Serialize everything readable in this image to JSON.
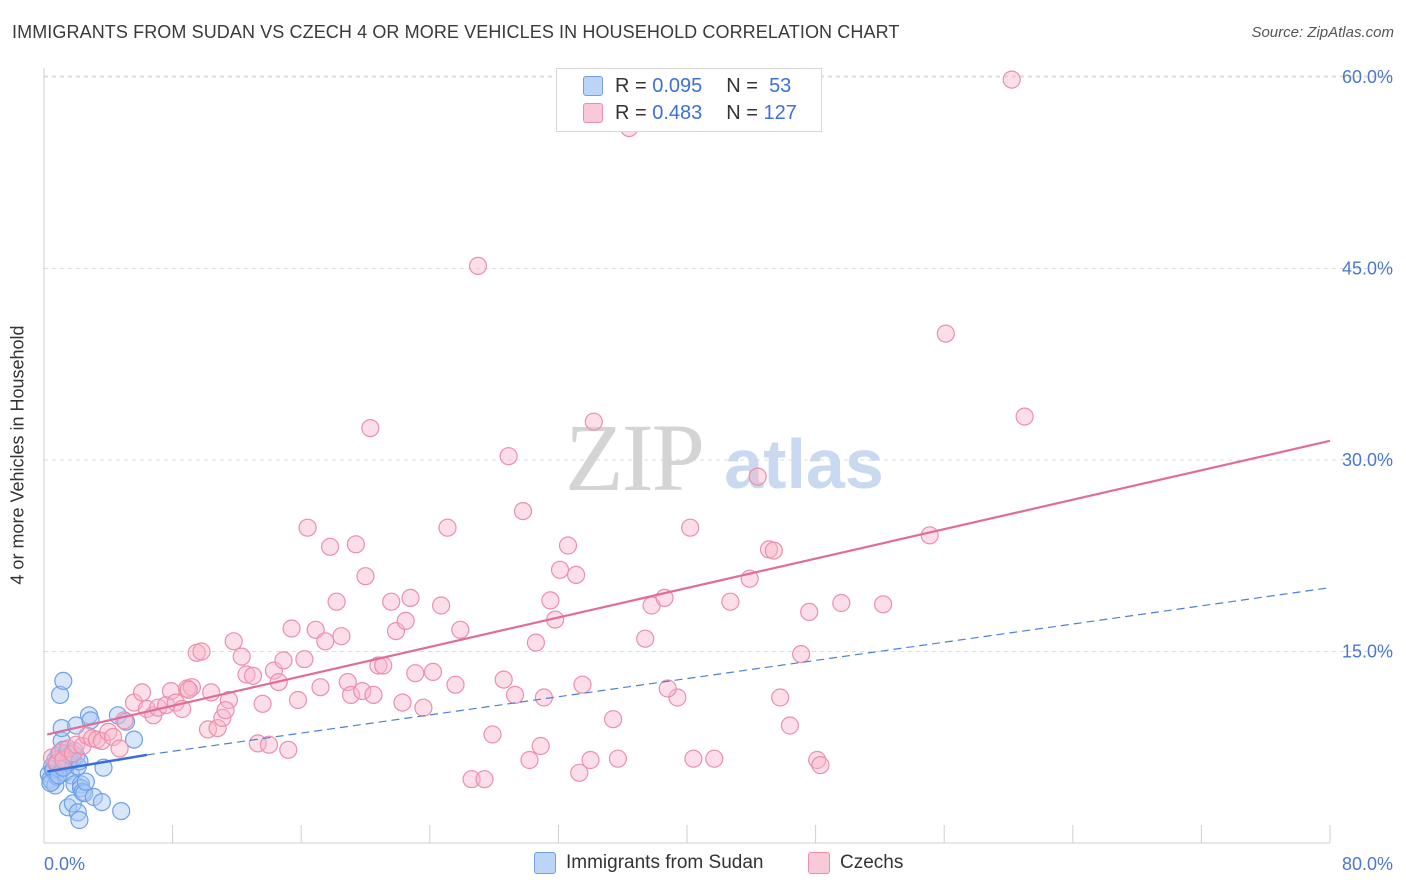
{
  "title": "IMMIGRANTS FROM SUDAN VS CZECH 4 OR MORE VEHICLES IN HOUSEHOLD CORRELATION CHART",
  "source": "Source: ZipAtlas.com",
  "watermark": {
    "zip": "ZIP",
    "atlas": "atlas"
  },
  "legend_top": [
    {
      "swatch_color": "#a9c8f3",
      "r_label": "R =",
      "r_value": "0.095",
      "n_label": "N =",
      "n_value": "53"
    },
    {
      "swatch_color": "#f6b6c9",
      "r_label": "R =",
      "r_value": "0.483",
      "n_label": "N =",
      "n_value": "127"
    }
  ],
  "legend_bottom": [
    {
      "label": "Immigrants from Sudan",
      "color": "#a9c8f3"
    },
    {
      "label": "Czechs",
      "color": "#f6b6c9"
    }
  ],
  "chart_data": {
    "type": "scatter",
    "title": "IMMIGRANTS FROM SUDAN VS CZECH 4 OR MORE VEHICLES IN HOUSEHOLD CORRELATION CHART",
    "xlabel": "",
    "ylabel": "4 or more Vehicles in Household",
    "xlim": [
      0,
      80
    ],
    "ylim": [
      0,
      63
    ],
    "x_tick_labels": [
      {
        "value": 0,
        "label": "0.0%"
      },
      {
        "value": 80,
        "label": "80.0%"
      }
    ],
    "y_tick_labels": [
      {
        "value": 15,
        "label": "15.0%"
      },
      {
        "value": 30,
        "label": "30.0%"
      },
      {
        "value": 45,
        "label": "45.0%"
      },
      {
        "value": 60,
        "label": "60.0%"
      }
    ],
    "grid": true,
    "legend_position": "top-center",
    "series": [
      {
        "name": "Immigrants from Sudan",
        "color": "#6fa0e8",
        "fill": "#a9c8f3",
        "trend": {
          "x0": 0.2,
          "y0": 5.6,
          "x1": 6.4,
          "y1": 6.9,
          "style": "solid",
          "color": "#3b6fd6"
        },
        "trend_extended": {
          "x0": 6.4,
          "y0": 6.9,
          "x1": 80,
          "y1": 20.0,
          "style": "dashed",
          "color": "#4d7fdc"
        },
        "points": [
          [
            0.3,
            5.4
          ],
          [
            0.4,
            5.0
          ],
          [
            0.5,
            4.8
          ],
          [
            0.5,
            6.0
          ],
          [
            0.6,
            5.6
          ],
          [
            0.7,
            4.5
          ],
          [
            0.7,
            6.5
          ],
          [
            0.8,
            5.2
          ],
          [
            0.9,
            6.9
          ],
          [
            1.0,
            5.8
          ],
          [
            1.0,
            11.6
          ],
          [
            1.1,
            8.0
          ],
          [
            1.1,
            9.0
          ],
          [
            1.2,
            12.7
          ],
          [
            1.2,
            7.3
          ],
          [
            1.3,
            5.5
          ],
          [
            1.4,
            6.1
          ],
          [
            1.4,
            7.0
          ],
          [
            1.5,
            2.8
          ],
          [
            1.6,
            6.4
          ],
          [
            1.7,
            5.3
          ],
          [
            1.8,
            3.1
          ],
          [
            1.8,
            6.6
          ],
          [
            1.9,
            7.2
          ],
          [
            1.9,
            4.6
          ],
          [
            2.0,
            9.2
          ],
          [
            2.0,
            6.8
          ],
          [
            2.1,
            2.4
          ],
          [
            2.1,
            6.0
          ],
          [
            2.2,
            1.8
          ],
          [
            2.3,
            4.6
          ],
          [
            2.3,
            4.3
          ],
          [
            2.4,
            4.0
          ],
          [
            2.5,
            3.9
          ],
          [
            2.8,
            10.0
          ],
          [
            2.9,
            9.6
          ],
          [
            3.1,
            3.6
          ],
          [
            3.6,
            3.2
          ],
          [
            3.7,
            5.9
          ],
          [
            4.6,
            10.0
          ],
          [
            4.8,
            2.5
          ],
          [
            5.1,
            9.5
          ],
          [
            5.6,
            8.1
          ],
          [
            0.6,
            5.8
          ],
          [
            0.8,
            6.2
          ],
          [
            1.3,
            6.7
          ],
          [
            1.5,
            6.3
          ],
          [
            0.4,
            4.7
          ],
          [
            0.9,
            5.3
          ],
          [
            1.2,
            5.9
          ],
          [
            1.6,
            6.9
          ],
          [
            2.2,
            6.4
          ],
          [
            2.6,
            4.8
          ]
        ]
      },
      {
        "name": "Czechs",
        "color": "#ec8fac",
        "fill": "#f6b6c9",
        "trend": {
          "x0": 0.2,
          "y0": 8.5,
          "x1": 80,
          "y1": 31.5,
          "style": "solid",
          "color": "#e06d95"
        },
        "points": [
          [
            0.5,
            6.7
          ],
          [
            0.8,
            6.3
          ],
          [
            1.0,
            7.1
          ],
          [
            1.2,
            6.5
          ],
          [
            1.5,
            7.4
          ],
          [
            1.8,
            7.0
          ],
          [
            2.0,
            7.7
          ],
          [
            2.4,
            7.6
          ],
          [
            2.7,
            8.4
          ],
          [
            3.0,
            8.2
          ],
          [
            3.3,
            8.1
          ],
          [
            3.6,
            8.0
          ],
          [
            4.0,
            8.7
          ],
          [
            4.3,
            8.3
          ],
          [
            4.7,
            7.4
          ],
          [
            5.0,
            9.6
          ],
          [
            5.6,
            11.0
          ],
          [
            6.1,
            11.8
          ],
          [
            6.4,
            10.5
          ],
          [
            6.8,
            10.0
          ],
          [
            7.1,
            10.6
          ],
          [
            7.6,
            10.8
          ],
          [
            7.9,
            11.9
          ],
          [
            8.2,
            11.0
          ],
          [
            8.6,
            10.5
          ],
          [
            8.9,
            12.1
          ],
          [
            9.2,
            12.2
          ],
          [
            9.5,
            14.9
          ],
          [
            9.8,
            15.0
          ],
          [
            10.2,
            8.9
          ],
          [
            10.4,
            11.8
          ],
          [
            10.8,
            9.0
          ],
          [
            11.1,
            9.8
          ],
          [
            11.5,
            11.2
          ],
          [
            11.8,
            15.8
          ],
          [
            12.3,
            14.6
          ],
          [
            12.6,
            13.2
          ],
          [
            13.0,
            13.1
          ],
          [
            13.3,
            7.8
          ],
          [
            13.6,
            10.9
          ],
          [
            14.0,
            7.7
          ],
          [
            14.3,
            13.5
          ],
          [
            14.6,
            12.6
          ],
          [
            14.9,
            14.3
          ],
          [
            15.2,
            7.3
          ],
          [
            15.4,
            16.8
          ],
          [
            15.8,
            11.2
          ],
          [
            16.2,
            14.4
          ],
          [
            16.4,
            24.7
          ],
          [
            16.9,
            16.7
          ],
          [
            17.2,
            12.2
          ],
          [
            17.5,
            15.8
          ],
          [
            17.8,
            23.2
          ],
          [
            18.2,
            18.9
          ],
          [
            18.5,
            16.2
          ],
          [
            18.9,
            12.6
          ],
          [
            19.1,
            11.6
          ],
          [
            19.4,
            23.4
          ],
          [
            19.8,
            11.9
          ],
          [
            20.0,
            20.9
          ],
          [
            20.3,
            32.5
          ],
          [
            20.5,
            11.6
          ],
          [
            20.8,
            13.9
          ],
          [
            21.1,
            13.9
          ],
          [
            21.6,
            18.9
          ],
          [
            21.9,
            16.6
          ],
          [
            22.3,
            11.0
          ],
          [
            22.5,
            17.4
          ],
          [
            22.8,
            19.2
          ],
          [
            23.1,
            13.3
          ],
          [
            23.6,
            10.6
          ],
          [
            24.2,
            13.4
          ],
          [
            24.7,
            18.6
          ],
          [
            25.1,
            24.7
          ],
          [
            25.6,
            12.4
          ],
          [
            25.9,
            16.7
          ],
          [
            26.6,
            5.0
          ],
          [
            27.0,
            45.2
          ],
          [
            27.4,
            5.0
          ],
          [
            27.9,
            8.5
          ],
          [
            28.6,
            12.8
          ],
          [
            28.9,
            30.3
          ],
          [
            29.3,
            11.6
          ],
          [
            29.8,
            26.0
          ],
          [
            30.2,
            6.5
          ],
          [
            30.6,
            15.7
          ],
          [
            31.1,
            11.4
          ],
          [
            31.5,
            19.0
          ],
          [
            31.8,
            17.5
          ],
          [
            32.1,
            21.4
          ],
          [
            32.6,
            23.3
          ],
          [
            33.1,
            21.0
          ],
          [
            33.3,
            5.5
          ],
          [
            33.5,
            12.4
          ],
          [
            34.0,
            6.5
          ],
          [
            34.2,
            33.0
          ],
          [
            35.4,
            9.7
          ],
          [
            35.7,
            6.6
          ],
          [
            36.4,
            56.0
          ],
          [
            37.4,
            16.0
          ],
          [
            37.8,
            18.6
          ],
          [
            38.6,
            19.2
          ],
          [
            39.4,
            11.4
          ],
          [
            40.2,
            24.7
          ],
          [
            40.4,
            6.6
          ],
          [
            41.7,
            6.6
          ],
          [
            42.7,
            18.9
          ],
          [
            43.9,
            20.7
          ],
          [
            44.4,
            28.7
          ],
          [
            45.1,
            23.0
          ],
          [
            45.4,
            22.9
          ],
          [
            45.8,
            11.4
          ],
          [
            46.4,
            9.2
          ],
          [
            47.1,
            14.8
          ],
          [
            47.6,
            18.1
          ],
          [
            48.1,
            6.5
          ],
          [
            48.3,
            6.1
          ],
          [
            49.6,
            18.8
          ],
          [
            52.2,
            18.7
          ],
          [
            55.1,
            24.1
          ],
          [
            56.1,
            39.9
          ],
          [
            60.2,
            59.8
          ],
          [
            61.0,
            33.4
          ],
          [
            38.8,
            12.1
          ],
          [
            30.9,
            7.6
          ],
          [
            9.0,
            12.0
          ],
          [
            11.3,
            10.4
          ]
        ]
      }
    ]
  }
}
